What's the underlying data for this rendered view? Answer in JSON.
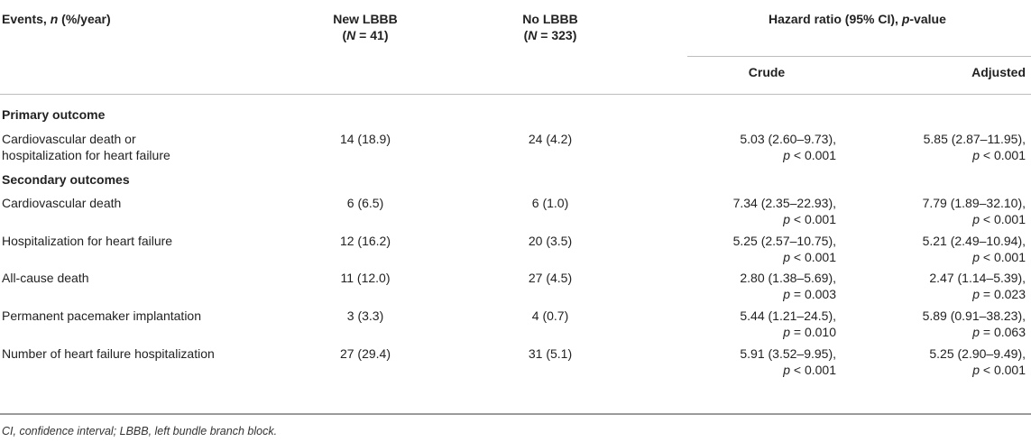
{
  "header": {
    "events_prefix": "Events, ",
    "events_n": "n",
    "events_suffix": " (%/year)",
    "new_lbbb_label": "New LBBB",
    "new_lbbb_n": "(N = 41)",
    "no_lbbb_label": "No LBBB",
    "no_lbbb_n": "(N = 323)",
    "hr_prefix": "Hazard ratio (95% CI), ",
    "hr_p": "p",
    "hr_suffix": "-value",
    "crude": "Crude",
    "adjusted": "Adjusted"
  },
  "sections": {
    "primary": "Primary outcome",
    "secondary": "Secondary outcomes"
  },
  "rows": [
    {
      "label_1": "Cardiovascular death or",
      "label_2": "hospitalization for heart failure",
      "new": "14 (18.9)",
      "no": "24 (4.2)",
      "crude_1": "5.03 (2.60–9.73),",
      "crude_2": "p < 0.001",
      "adj_1": "5.85 (2.87–11.95),",
      "adj_2": "p < 0.001"
    },
    {
      "label_1": "Cardiovascular death",
      "label_2": "",
      "new": "6 (6.5)",
      "no": "6 (1.0)",
      "crude_1": "7.34 (2.35–22.93),",
      "crude_2": "p < 0.001",
      "adj_1": "7.79 (1.89–32.10),",
      "adj_2": "p < 0.001"
    },
    {
      "label_1": "Hospitalization for heart failure",
      "label_2": "",
      "new": "12 (16.2)",
      "no": "20 (3.5)",
      "crude_1": "5.25 (2.57–10.75),",
      "crude_2": "p < 0.001",
      "adj_1": "5.21 (2.49–10.94),",
      "adj_2": "p < 0.001"
    },
    {
      "label_1": "All-cause death",
      "label_2": "",
      "new": "11 (12.0)",
      "no": "27 (4.5)",
      "crude_1": "2.80 (1.38–5.69),",
      "crude_2": "p = 0.003",
      "adj_1": "2.47 (1.14–5.39),",
      "adj_2": "p = 0.023"
    },
    {
      "label_1": "Permanent pacemaker implantation",
      "label_2": "",
      "new": "3 (3.3)",
      "no": "4 (0.7)",
      "crude_1": "5.44 (1.21–24.5),",
      "crude_2": "p = 0.010",
      "adj_1": "5.89 (0.91–38.23),",
      "adj_2": "p = 0.063"
    },
    {
      "label_1": "Number of heart failure hospitalization",
      "label_2": "",
      "new": "27 (29.4)",
      "no": "31 (5.1)",
      "crude_1": "5.91 (3.52–9.95),",
      "crude_2": "p < 0.001",
      "adj_1": "5.25 (2.90–9.49),",
      "adj_2": "p < 0.001"
    }
  ],
  "footnote": "CI, confidence interval; LBBB, left bundle branch block."
}
